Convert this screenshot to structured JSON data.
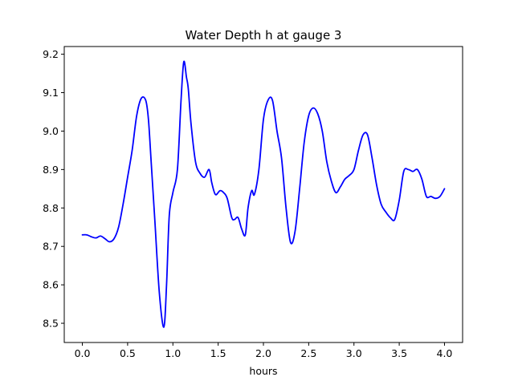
{
  "chart_data": {
    "type": "line",
    "title": "Water Depth h at gauge 3",
    "xlabel": "hours",
    "ylabel": "",
    "xlim": [
      -0.2,
      4.2
    ],
    "ylim": [
      8.45,
      9.22
    ],
    "xticks": [
      0.0,
      0.5,
      1.0,
      1.5,
      2.0,
      2.5,
      3.0,
      3.5,
      4.0
    ],
    "xtick_labels": [
      "0.0",
      "0.5",
      "1.0",
      "1.5",
      "2.0",
      "2.5",
      "3.0",
      "3.5",
      "4.0"
    ],
    "yticks": [
      8.5,
      8.6,
      8.7,
      8.8,
      8.9,
      9.0,
      9.1,
      9.2
    ],
    "ytick_labels": [
      "8.5",
      "8.6",
      "8.7",
      "8.8",
      "8.9",
      "9.0",
      "9.1",
      "9.2"
    ],
    "grid": false,
    "series": [
      {
        "name": "",
        "color": "#0000ff",
        "x": [
          0.0,
          0.05,
          0.1,
          0.15,
          0.2,
          0.25,
          0.3,
          0.35,
          0.4,
          0.45,
          0.5,
          0.55,
          0.6,
          0.65,
          0.7,
          0.73,
          0.76,
          0.8,
          0.85,
          0.9,
          0.93,
          0.96,
          1.0,
          1.05,
          1.09,
          1.12,
          1.15,
          1.17,
          1.2,
          1.25,
          1.3,
          1.35,
          1.4,
          1.43,
          1.47,
          1.52,
          1.56,
          1.6,
          1.65,
          1.68,
          1.72,
          1.76,
          1.8,
          1.83,
          1.87,
          1.9,
          1.95,
          2.0,
          2.05,
          2.1,
          2.15,
          2.2,
          2.25,
          2.3,
          2.35,
          2.4,
          2.45,
          2.5,
          2.55,
          2.6,
          2.65,
          2.7,
          2.75,
          2.8,
          2.85,
          2.9,
          2.95,
          3.0,
          3.05,
          3.1,
          3.15,
          3.2,
          3.25,
          3.3,
          3.35,
          3.4,
          3.45,
          3.5,
          3.55,
          3.6,
          3.65,
          3.7,
          3.75,
          3.8,
          3.85,
          3.9,
          3.95,
          4.0
        ],
        "y": [
          8.73,
          8.73,
          8.725,
          8.722,
          8.727,
          8.72,
          8.712,
          8.72,
          8.75,
          8.81,
          8.88,
          8.95,
          9.04,
          9.085,
          9.08,
          9.03,
          8.92,
          8.77,
          8.58,
          8.49,
          8.6,
          8.78,
          8.84,
          8.9,
          9.08,
          9.18,
          9.14,
          9.11,
          9.02,
          8.92,
          8.89,
          8.88,
          8.9,
          8.865,
          8.835,
          8.845,
          8.84,
          8.825,
          8.775,
          8.77,
          8.775,
          8.745,
          8.73,
          8.8,
          8.845,
          8.835,
          8.9,
          9.03,
          9.08,
          9.08,
          9.0,
          8.93,
          8.8,
          8.71,
          8.74,
          8.85,
          8.97,
          9.04,
          9.06,
          9.045,
          9.0,
          8.92,
          8.87,
          8.84,
          8.855,
          8.875,
          8.885,
          8.9,
          8.95,
          8.99,
          8.99,
          8.93,
          8.86,
          8.81,
          8.79,
          8.775,
          8.77,
          8.82,
          8.895,
          8.9,
          8.895,
          8.9,
          8.875,
          8.83,
          8.83,
          8.825,
          8.83,
          8.85
        ]
      }
    ]
  }
}
